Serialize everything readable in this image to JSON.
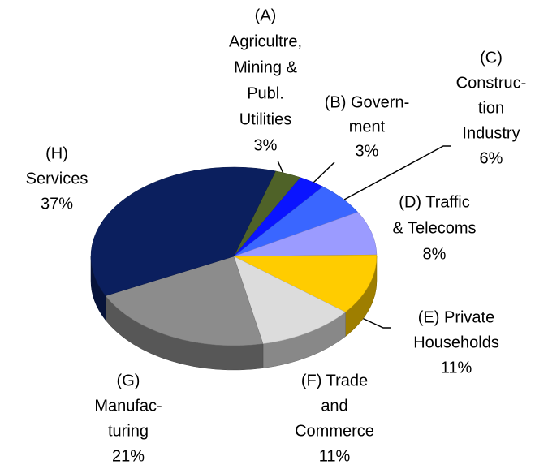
{
  "chart_data": {
    "type": "pie",
    "categories": [
      [
        "(A)",
        "Agricultre,",
        "Mining &",
        "Publ.",
        "Utilities"
      ],
      [
        "(B) Govern-",
        "ment"
      ],
      [
        "(C)",
        "Construc-",
        "tion",
        "Industry"
      ],
      [
        "(D) Traffic",
        "& Telecoms"
      ],
      [
        "(E) Private",
        "Households"
      ],
      [
        "(F) Trade",
        "and",
        "Commerce"
      ],
      [
        "(G)",
        "Manufac-",
        "turing"
      ],
      [
        "(H)",
        "Services"
      ]
    ],
    "values": [
      3,
      3,
      6,
      8,
      11,
      11,
      21,
      37
    ],
    "value_labels": [
      "3%",
      "3%",
      "6%",
      "8%",
      "11%",
      "11%",
      "21%",
      "37%"
    ],
    "colors": [
      "#4f6228",
      "#0a14ff",
      "#3a66ff",
      "#9b9bff",
      "#ffcc00",
      "#dcdcdc",
      "#8c8c8c",
      "#0b1f5e"
    ],
    "three_d": true
  }
}
